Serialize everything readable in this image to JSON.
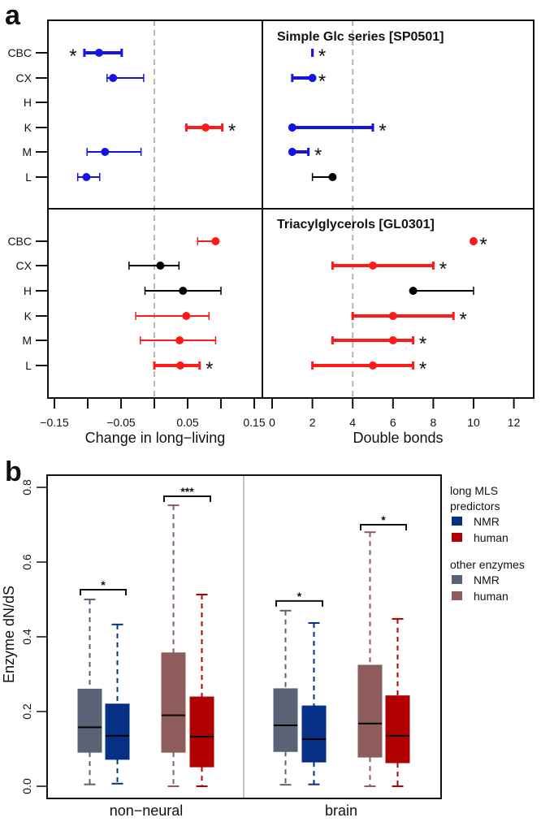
{
  "panel_labels": {
    "a": "a",
    "b": "b"
  },
  "chart_data": [
    {
      "type": "forest",
      "row_labels": [
        "CBC",
        "CX",
        "H",
        "K",
        "M",
        "L"
      ],
      "left_axis": {
        "title": "Change in long−living",
        "ticks": [
          -0.15,
          -0.1,
          -0.05,
          0,
          0.05,
          0.1,
          0.15
        ],
        "tick_labels": [
          "−0.15",
          "",
          "−0.05",
          "",
          "0.05",
          "",
          "0.15"
        ],
        "reference_line": 0
      },
      "right_axis": {
        "title": "Double bonds",
        "ticks": [
          0,
          2,
          4,
          6,
          8,
          10,
          12
        ],
        "tick_labels": [
          "0",
          "2",
          "4",
          "6",
          "8",
          "10",
          "12"
        ],
        "reference_line": 4
      },
      "colors": {
        "blue": "#1414e6",
        "red": "#ff1a1a",
        "black": "#000000"
      },
      "panels": [
        {
          "title": "",
          "axis": "left",
          "row_set": "top",
          "rows": [
            {
              "label": "CBC",
              "value": -0.083,
              "lo": -0.105,
              "hi": -0.049,
              "color": "blue",
              "bold": true,
              "star": "left"
            },
            {
              "label": "CX",
              "value": -0.062,
              "lo": -0.071,
              "hi": -0.016,
              "color": "blue",
              "bold": false,
              "star": ""
            },
            {
              "label": "H",
              "value": null,
              "lo": null,
              "hi": null,
              "color": "black",
              "bold": false,
              "star": ""
            },
            {
              "label": "K",
              "value": 0.077,
              "lo": 0.048,
              "hi": 0.102,
              "color": "red",
              "bold": true,
              "star": "right"
            },
            {
              "label": "M",
              "value": -0.074,
              "lo": -0.101,
              "hi": -0.02,
              "color": "blue",
              "bold": false,
              "star": ""
            },
            {
              "label": "L",
              "value": -0.102,
              "lo": -0.115,
              "hi": -0.082,
              "color": "blue",
              "bold": false,
              "star": ""
            }
          ]
        },
        {
          "title": "Simple Glc series [SP0501]",
          "axis": "right",
          "row_set": "top",
          "rows": [
            {
              "label": "CBC",
              "value": 2,
              "lo": 2,
              "hi": 2,
              "color": "blue",
              "bold": true,
              "star": "right"
            },
            {
              "label": "CX",
              "value": 2,
              "lo": 1,
              "hi": 2,
              "color": "blue",
              "bold": true,
              "star": "right"
            },
            {
              "label": "H",
              "value": null,
              "lo": null,
              "hi": null,
              "color": "black",
              "bold": false,
              "star": ""
            },
            {
              "label": "K",
              "value": 1,
              "lo": 1,
              "hi": 5,
              "color": "blue",
              "bold": true,
              "star": "right"
            },
            {
              "label": "M",
              "value": 1,
              "lo": 1,
              "hi": 1.8,
              "color": "blue",
              "bold": true,
              "star": "right"
            },
            {
              "label": "L",
              "value": 3,
              "lo": 2,
              "hi": 3,
              "color": "black",
              "bold": false,
              "star": ""
            }
          ]
        },
        {
          "title": "",
          "axis": "left",
          "row_set": "bottom",
          "rows": [
            {
              "label": "CBC",
              "value": 0.092,
              "lo": 0.065,
              "hi": 0.092,
              "color": "red",
              "bold": false,
              "star": ""
            },
            {
              "label": "CX",
              "value": 0.009,
              "lo": -0.038,
              "hi": 0.037,
              "color": "black",
              "bold": false,
              "star": ""
            },
            {
              "label": "H",
              "value": 0.043,
              "lo": -0.014,
              "hi": 0.1,
              "color": "black",
              "bold": false,
              "star": ""
            },
            {
              "label": "K",
              "value": 0.048,
              "lo": -0.028,
              "hi": 0.082,
              "color": "red",
              "bold": false,
              "star": ""
            },
            {
              "label": "M",
              "value": 0.038,
              "lo": -0.021,
              "hi": 0.092,
              "color": "red",
              "bold": false,
              "star": ""
            },
            {
              "label": "L",
              "value": 0.039,
              "lo": 0.0,
              "hi": 0.068,
              "color": "red",
              "bold": true,
              "star": "right"
            }
          ]
        },
        {
          "title": "Triacylglycerols [GL0301]",
          "axis": "right",
          "row_set": "bottom",
          "rows": [
            {
              "label": "CBC",
              "value": 10,
              "lo": 10,
              "hi": 10,
              "color": "red",
              "bold": true,
              "star": "right"
            },
            {
              "label": "CX",
              "value": 5,
              "lo": 3,
              "hi": 8,
              "color": "red",
              "bold": true,
              "star": "right"
            },
            {
              "label": "H",
              "value": 7,
              "lo": 7,
              "hi": 10,
              "color": "black",
              "bold": false,
              "star": ""
            },
            {
              "label": "K",
              "value": 6,
              "lo": 4,
              "hi": 9,
              "color": "red",
              "bold": true,
              "star": "right"
            },
            {
              "label": "M",
              "value": 6,
              "lo": 3,
              "hi": 7,
              "color": "red",
              "bold": true,
              "star": "right"
            },
            {
              "label": "L",
              "value": 5,
              "lo": 2,
              "hi": 7,
              "color": "red",
              "bold": true,
              "star": "right"
            }
          ]
        }
      ],
      "star_symbol": "*"
    },
    {
      "type": "box",
      "ylabel": "Enzyme dN/dS",
      "ylim": [
        0,
        0.8
      ],
      "yticks": [
        0.0,
        0.2,
        0.4,
        0.6,
        0.8
      ],
      "ytick_labels": [
        "0.0",
        "0.2",
        "0.4",
        "0.6",
        "0.8"
      ],
      "categories": [
        "non−neural",
        "brain"
      ],
      "boxes": [
        {
          "category": "non−neural",
          "group": "other enzymes",
          "species": "NMR",
          "color": "#5a6276",
          "min": 0.005,
          "q1": 0.091,
          "median": 0.158,
          "q3": 0.26,
          "max": 0.5
        },
        {
          "category": "non−neural",
          "group": "long MLS predictors",
          "species": "NMR",
          "color": "#062f86",
          "min": 0.007,
          "q1": 0.072,
          "median": 0.135,
          "q3": 0.22,
          "max": 0.433
        },
        {
          "category": "non−neural",
          "group": "other enzymes",
          "species": "human",
          "color": "#8f5c5c",
          "min": 0.0,
          "q1": 0.091,
          "median": 0.19,
          "q3": 0.357,
          "max": 0.752
        },
        {
          "category": "non−neural",
          "group": "long MLS predictors",
          "species": "human",
          "color": "#b00000",
          "min": 0.0,
          "q1": 0.052,
          "median": 0.133,
          "q3": 0.239,
          "max": 0.513
        },
        {
          "category": "brain",
          "group": "other enzymes",
          "species": "NMR",
          "color": "#5a6276",
          "min": 0.004,
          "q1": 0.093,
          "median": 0.163,
          "q3": 0.261,
          "max": 0.47
        },
        {
          "category": "brain",
          "group": "long MLS predictors",
          "species": "NMR",
          "color": "#062f86",
          "min": 0.005,
          "q1": 0.065,
          "median": 0.126,
          "q3": 0.215,
          "max": 0.437
        },
        {
          "category": "brain",
          "group": "other enzymes",
          "species": "human",
          "color": "#8f5c5c",
          "min": 0.0,
          "q1": 0.078,
          "median": 0.168,
          "q3": 0.324,
          "max": 0.68
        },
        {
          "category": "brain",
          "group": "long MLS predictors",
          "species": "human",
          "color": "#b00000",
          "min": 0.0,
          "q1": 0.063,
          "median": 0.135,
          "q3": 0.242,
          "max": 0.448
        }
      ],
      "significance": [
        {
          "pair": [
            0,
            1
          ],
          "label": "*",
          "y": 0.526
        },
        {
          "pair": [
            2,
            3
          ],
          "label": "***",
          "y": 0.776
        },
        {
          "pair": [
            4,
            5
          ],
          "label": "*",
          "y": 0.496
        },
        {
          "pair": [
            6,
            7
          ],
          "label": "*",
          "y": 0.7
        }
      ],
      "legend": {
        "placement": "right",
        "groups": [
          {
            "title_lines": [
              "long MLS",
              "predictors"
            ],
            "items": [
              {
                "label": "NMR",
                "color": "#062f86"
              },
              {
                "label": "human",
                "color": "#b00000"
              }
            ]
          },
          {
            "title_lines": [
              "other enzymes"
            ],
            "items": [
              {
                "label": "NMR",
                "color": "#5a6276"
              },
              {
                "label": "human",
                "color": "#8f5c5c"
              }
            ]
          }
        ]
      }
    }
  ]
}
